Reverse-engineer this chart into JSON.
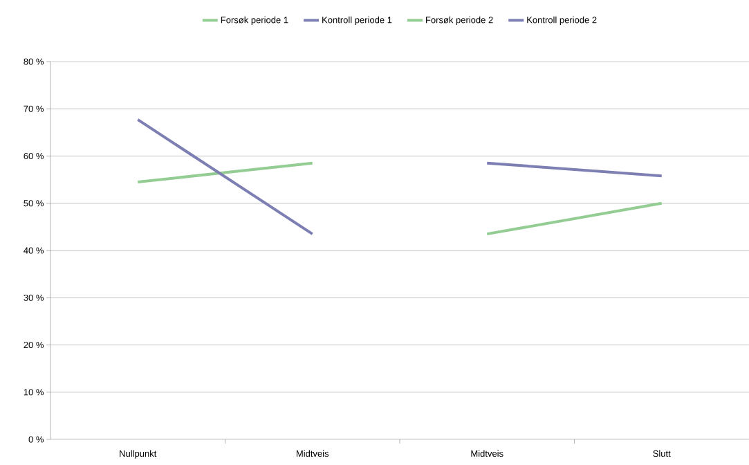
{
  "chart_data": {
    "type": "line",
    "categories": [
      "Nullpunkt",
      "Midtveis",
      "Midtveis",
      "Slutt"
    ],
    "series": [
      {
        "name": "Forsøk periode 1",
        "color": "#93cd93",
        "values": [
          54.5,
          58.5,
          null,
          null
        ]
      },
      {
        "name": "Kontroll periode 1",
        "color": "#7d7fb3",
        "values": [
          67.7,
          43.5,
          null,
          null
        ]
      },
      {
        "name": "Forsøk periode 2",
        "color": "#93cd93",
        "values": [
          null,
          null,
          43.5,
          50
        ]
      },
      {
        "name": "Kontroll periode 2",
        "color": "#7d7fb3",
        "values": [
          null,
          null,
          58.5,
          55.8
        ]
      }
    ],
    "ylim": [
      0,
      80
    ],
    "yticks": [
      {
        "value": 0,
        "label": "0 %"
      },
      {
        "value": 10,
        "label": "10 %"
      },
      {
        "value": 20,
        "label": "20 %"
      },
      {
        "value": 30,
        "label": "30 %"
      },
      {
        "value": 40,
        "label": "40 %"
      },
      {
        "value": 50,
        "label": "50 %"
      },
      {
        "value": 60,
        "label": "60 %"
      },
      {
        "value": 70,
        "label": "70 %"
      },
      {
        "value": 80,
        "label": "80 %"
      }
    ],
    "grid": "y",
    "legend": "top",
    "marker": "none",
    "line_style": "solid"
  }
}
